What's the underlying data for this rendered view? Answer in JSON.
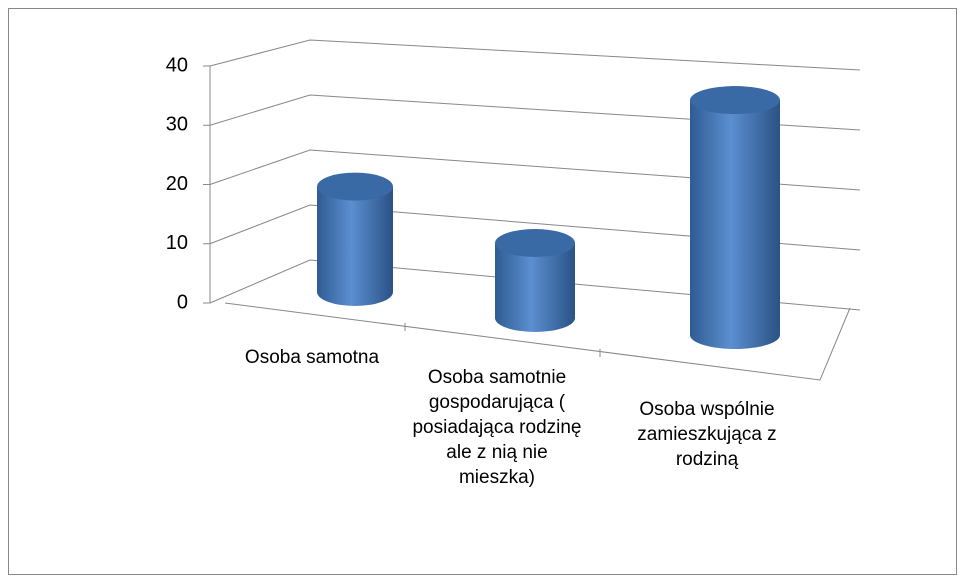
{
  "chart_data": {
    "type": "bar3d",
    "categories": [
      "Osoba samotna",
      "Osoba samotnie gospodarująca ( posiadająca rodzinę ale z nią nie mieszka)",
      "Osoba wspólnie zamieszkująca z rodziną"
    ],
    "values": [
      17,
      12,
      37
    ],
    "color": "#4f81bd",
    "ylim": [
      0,
      40
    ],
    "yticks": [
      0,
      10,
      20,
      30,
      40
    ],
    "grid": true
  }
}
